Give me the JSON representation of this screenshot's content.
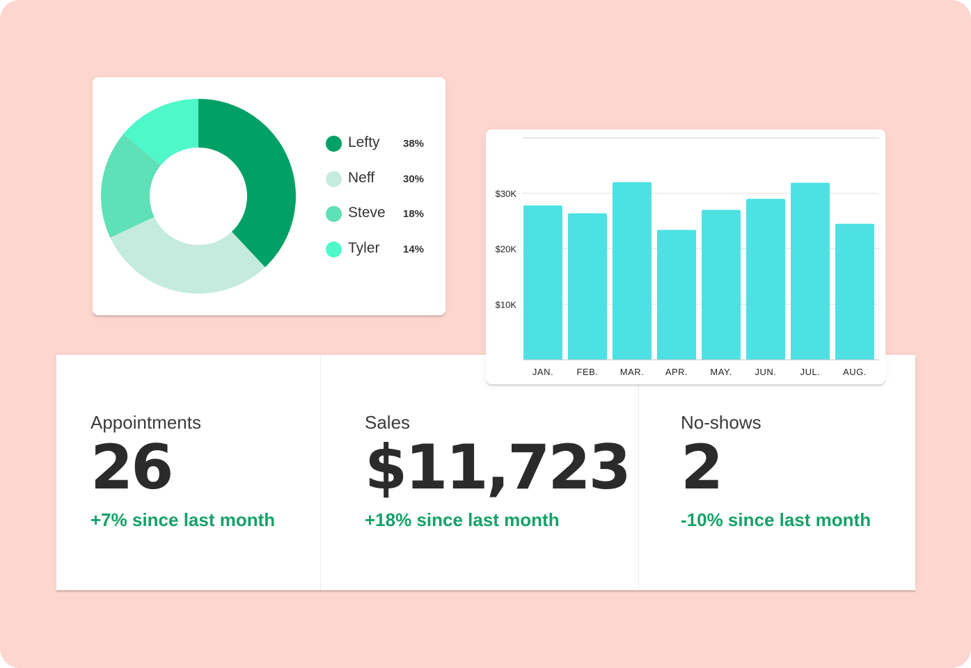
{
  "colors": {
    "background": "#fdd6cf",
    "card": "#ffffff",
    "bar": "#4de1e3",
    "positive": "#15a168",
    "text": "#2b2b2b"
  },
  "chart_data": [
    {
      "type": "pie",
      "subtype": "donut",
      "labels": [
        "Lefty",
        "Neff",
        "Steve",
        "Tyler"
      ],
      "values": [
        38,
        30,
        18,
        14
      ],
      "display_values": [
        "38%",
        "30%",
        "18%",
        "14%"
      ],
      "colors": [
        "#00a066",
        "#c5ebdf",
        "#5fe0b7",
        "#4ef8c9"
      ],
      "legend": "right"
    },
    {
      "type": "bar",
      "categories": [
        "JAN.",
        "FEB.",
        "MAR.",
        "APR.",
        "MAY.",
        "JUN.",
        "JUL.",
        "AUG."
      ],
      "values": [
        27800,
        26400,
        32000,
        23400,
        27000,
        29000,
        31900,
        24500
      ],
      "ylim": [
        0,
        40000
      ],
      "yticks": [
        10000,
        20000,
        30000
      ],
      "ytick_labels": [
        "$10K",
        "$20K",
        "$30K"
      ],
      "grid": true,
      "color": "#4de1e3",
      "title": "",
      "xlabel": "",
      "ylabel": ""
    }
  ],
  "stats": [
    {
      "label": "Appointments",
      "value": "26",
      "change": "+7% since last month"
    },
    {
      "label": "Sales",
      "value": "$11,723",
      "change": "+18% since last month"
    },
    {
      "label": "No-shows",
      "value": "2",
      "change": "-10% since last month"
    }
  ]
}
